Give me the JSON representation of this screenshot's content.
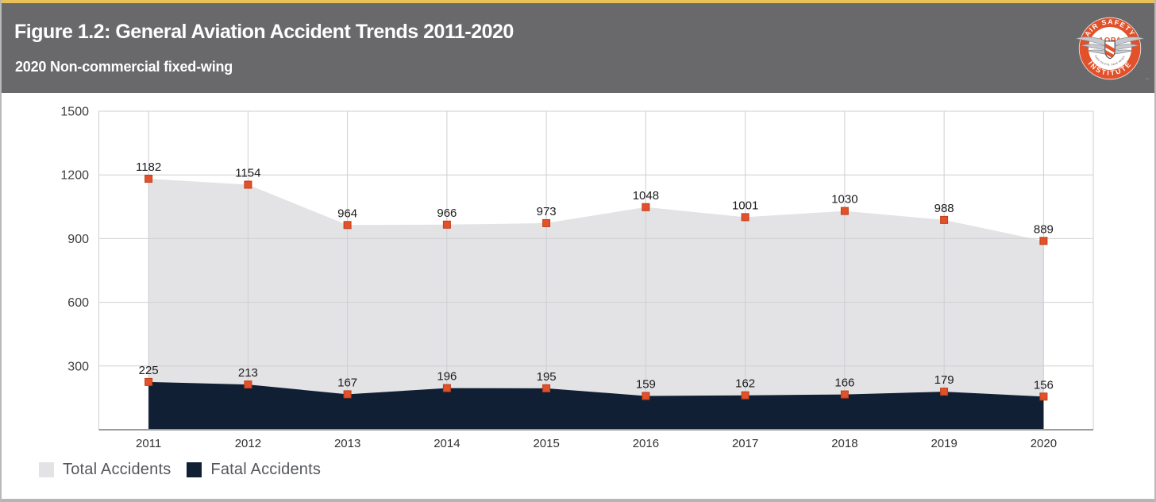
{
  "page": {
    "top_bar_color": "#e9c158",
    "header_bg": "#69696b",
    "title": "Figure 1.2: General Aviation Accident Trends 2011-2020",
    "subtitle": "2020 Non-commercial fixed-wing",
    "bottom_border_color": "#b5b5b5"
  },
  "logo": {
    "name": "AOPA Air Safety Institute badge",
    "arc_top": "AIR SAFETY",
    "arc_bottom": "INSTITUTE",
    "center": "AOPA",
    "tagline": "SAFE PILOTS. SAFE SKIES.",
    "trademark": "TM",
    "ring_color": "#e2512a",
    "wing_color": "#c6cacf"
  },
  "chart_data": {
    "type": "area",
    "title": "",
    "xlabel": "",
    "ylabel": "",
    "categories": [
      "2011",
      "2012",
      "2013",
      "2014",
      "2015",
      "2016",
      "2017",
      "2018",
      "2019",
      "2020"
    ],
    "series": [
      {
        "name": "Total Accidents",
        "color": "#e3e3e6",
        "values": [
          1182,
          1154,
          964,
          966,
          973,
          1048,
          1001,
          1030,
          988,
          889
        ]
      },
      {
        "name": "Fatal Accidents",
        "color": "#101f33",
        "values": [
          225,
          213,
          167,
          196,
          195,
          159,
          162,
          166,
          179,
          156
        ]
      }
    ],
    "marker": {
      "shape": "square",
      "size": 9,
      "color": "#e2512a",
      "border_color": "#bf3f1b"
    },
    "y_ticks": [
      300,
      600,
      900,
      1200,
      1500
    ],
    "ylim": [
      0,
      1500
    ],
    "grid": true,
    "gridline_color": "#cfcfd2",
    "axis_color": "#9b9b9b",
    "data_label_color": "#1b1b1b",
    "tick_label_color": "#3f3f3f",
    "legend_position": "bottom-left",
    "legend_text_color": "#55575c"
  }
}
